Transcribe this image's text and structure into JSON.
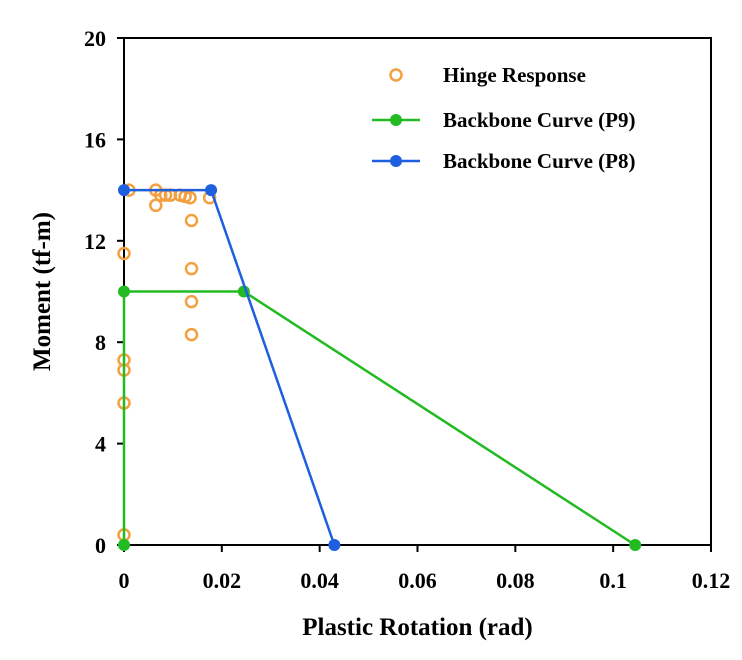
{
  "chart_data": {
    "type": "scatter",
    "xlabel": "Plastic Rotation (rad)",
    "ylabel": "Moment (tf-m)",
    "xlim": [
      0,
      0.12
    ],
    "ylim": [
      0,
      20
    ],
    "xticks": [
      0,
      0.02,
      0.04,
      0.06,
      0.08,
      0.1,
      0.12
    ],
    "xtick_labels": [
      "0",
      "0.02",
      "0.04",
      "0.06",
      "0.08",
      "0.1",
      "0.12"
    ],
    "yticks": [
      0,
      4,
      8,
      12,
      16,
      20
    ],
    "ytick_labels": [
      "0",
      "4",
      "8",
      "12",
      "16",
      "20"
    ],
    "grid": false,
    "legend_position": "top-right",
    "series": [
      {
        "name": "Hinge Response",
        "kind": "scatter",
        "marker": "open-circle",
        "color": "#F4A040",
        "points": [
          [
            0.0,
            0.4
          ],
          [
            0.0,
            5.6
          ],
          [
            0.0,
            6.9
          ],
          [
            0.0,
            7.3
          ],
          [
            0.0,
            11.5
          ],
          [
            0.001,
            14.0
          ],
          [
            0.0065,
            13.4
          ],
          [
            0.0065,
            14.0
          ],
          [
            0.0075,
            13.8
          ],
          [
            0.0085,
            13.8
          ],
          [
            0.0095,
            13.8
          ],
          [
            0.0115,
            13.8
          ],
          [
            0.0125,
            13.75
          ],
          [
            0.0135,
            13.7
          ],
          [
            0.0175,
            13.7
          ],
          [
            0.0138,
            12.8
          ],
          [
            0.0138,
            10.9
          ],
          [
            0.0138,
            9.6
          ],
          [
            0.0138,
            8.3
          ]
        ]
      },
      {
        "name": "Backbone Curve (P9)",
        "kind": "line-marker",
        "marker": "filled-circle",
        "color": "#22BB22",
        "points": [
          [
            0.0,
            0.0
          ],
          [
            0.0,
            10.0
          ],
          [
            0.0245,
            10.0
          ],
          [
            0.1045,
            0.0
          ]
        ]
      },
      {
        "name": "Backbone Curve (P8)",
        "kind": "line-marker",
        "marker": "filled-circle",
        "color": "#1E5FE0",
        "points": [
          [
            0.0,
            14.0
          ],
          [
            0.0178,
            14.0
          ],
          [
            0.043,
            0.0
          ]
        ]
      }
    ]
  }
}
